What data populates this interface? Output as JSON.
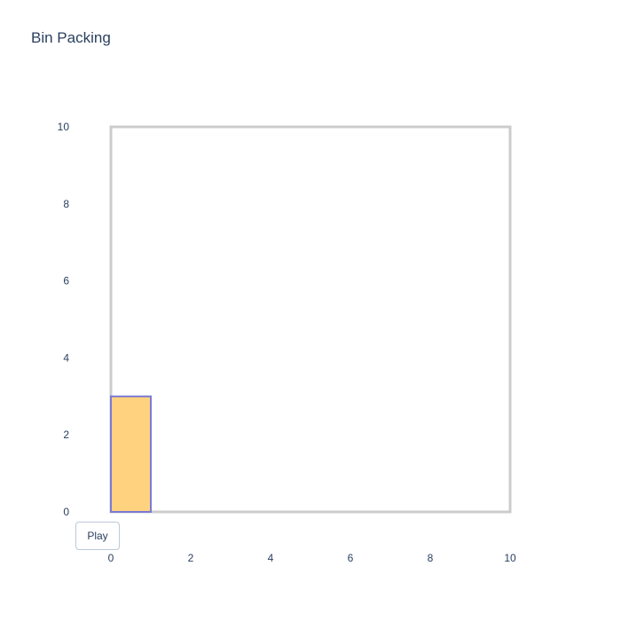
{
  "title": "Bin Packing",
  "controls": {
    "play_label": "Play"
  },
  "chart_data": {
    "type": "shapes",
    "title": "Bin Packing",
    "xlim": [
      0,
      10
    ],
    "ylim": [
      0,
      10
    ],
    "xticks": [
      "0",
      "2",
      "4",
      "6",
      "8",
      "10"
    ],
    "yticks": [
      "0",
      "2",
      "4",
      "6",
      "8",
      "10"
    ],
    "grid": false,
    "bin": {
      "x0": 0,
      "y0": 0,
      "x1": 10,
      "y1": 10,
      "line_color": "#cccccc"
    },
    "items": [
      {
        "x0": 0,
        "y0": 0,
        "x1": 1,
        "y1": 3,
        "fill_color": "#ffd280",
        "line_color": "#7a7ad6"
      }
    ]
  }
}
